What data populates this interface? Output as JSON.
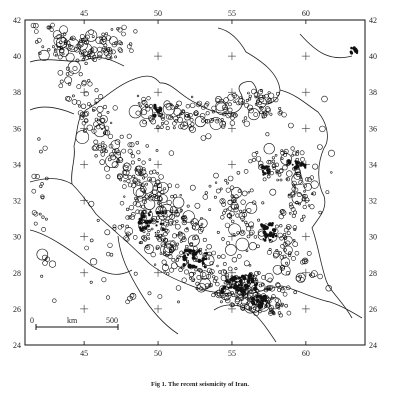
{
  "caption": "Fig 1. The recent seismicity of Iran.",
  "scale_bar": {
    "start_label": "0",
    "unit_label": "km",
    "end_label": "500"
  },
  "map": {
    "lon_range": [
      41,
      64
    ],
    "lat_range": [
      24,
      42
    ],
    "lon_ticks": [
      "45",
      "50",
      "55",
      "60"
    ],
    "lat_ticks": [
      "24",
      "26",
      "28",
      "30",
      "32",
      "34",
      "36",
      "38",
      "40",
      "42"
    ],
    "marker_style": "open circles, size proportional to magnitude",
    "ink_color": "#111111"
  }
}
